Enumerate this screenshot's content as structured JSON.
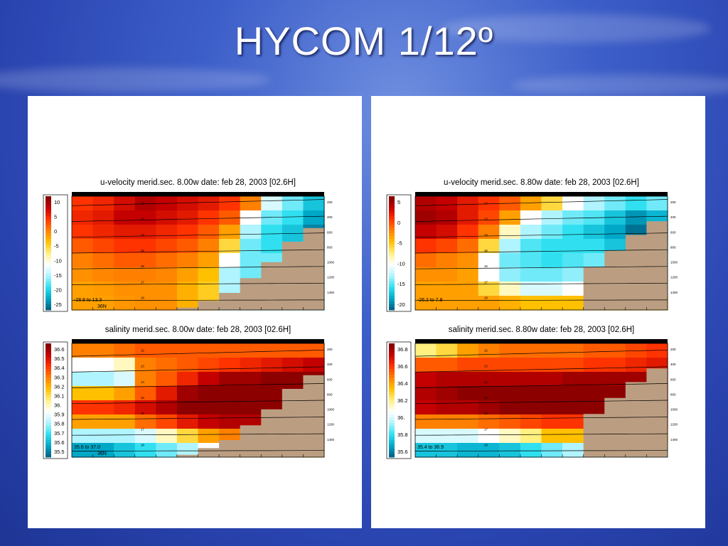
{
  "slide": {
    "title": "HYCOM 1/12º"
  },
  "chart_data": [
    {
      "type": "heatmap",
      "panel": "left",
      "variable": "u-velocity",
      "title": "u-velocity merid.sec.  8.00w   date: feb 28, 2003   [02.6H]",
      "colorbar_ticks": [
        "10",
        "5",
        "0",
        "-5",
        "-10",
        "-15",
        "-20",
        "-25"
      ],
      "colorbar_stops": [
        "#7a0000",
        "#c40000",
        "#ff3300",
        "#ff8000",
        "#ffc000",
        "#fff080",
        "#ffffff",
        "#b0f4ff",
        "#30e0f0",
        "#00a8c8",
        "#005e80"
      ],
      "depth_ticks": [
        "200",
        "400",
        "600",
        "800",
        "1000",
        "1200",
        "1400"
      ],
      "layer_labels": [
        "12",
        "13",
        "14",
        "15",
        "16",
        "17",
        "18"
      ],
      "range_text": "-28.8 to  13.3",
      "lat_text": "36N",
      "columns": [
        [
          0.6,
          0.65,
          0.6,
          0.5,
          0.4,
          0.35,
          0.3,
          0.3
        ],
        [
          0.65,
          0.7,
          0.65,
          0.55,
          0.45,
          0.38,
          0.32,
          0.3
        ],
        [
          0.75,
          0.8,
          0.7,
          0.6,
          0.5,
          0.4,
          0.35,
          0.33
        ],
        [
          0.85,
          0.8,
          0.7,
          0.6,
          0.5,
          0.4,
          0.35,
          0.35
        ],
        [
          0.8,
          0.75,
          0.65,
          0.55,
          0.45,
          0.38,
          0.35,
          0.35
        ],
        [
          0.75,
          0.7,
          0.6,
          0.5,
          0.4,
          0.3,
          0.25,
          0.25
        ],
        [
          0.7,
          0.6,
          0.5,
          0.4,
          0.3,
          0.2,
          0.15,
          0.15
        ],
        [
          0.6,
          0.5,
          0.3,
          0.1,
          -0.2,
          -0.4,
          -0.4,
          -0.4
        ],
        [
          0.4,
          -0.2,
          -0.4,
          -0.5,
          -0.5,
          -0.5,
          -0.5,
          -0.5
        ],
        [
          -0.3,
          -0.5,
          -0.6,
          -0.6,
          -0.5,
          -0.5,
          -0.5,
          -0.5
        ],
        [
          -0.5,
          -0.6,
          -0.7,
          -0.7,
          -0.5,
          -0.5,
          -0.5,
          -0.5
        ],
        [
          -0.7,
          -0.8,
          -0.9,
          -0.8,
          -0.6,
          -0.5,
          -0.5,
          -0.5
        ]
      ],
      "seafloor": [
        1.0,
        1.0,
        1.0,
        1.0,
        1.0,
        0.98,
        0.92,
        0.85,
        0.72,
        0.58,
        0.4,
        0.28
      ]
    },
    {
      "type": "heatmap",
      "panel": "left",
      "variable": "salinity",
      "title": "salinity merid.sec.  8.00w   date: feb 28, 2003   [02.6H]",
      "colorbar_ticks": [
        "36.6",
        "36.5",
        "36.4",
        "36.3",
        "36.2",
        "36.1",
        "36.",
        "35.9",
        "35.8",
        "35.7",
        "35.6",
        "35.5"
      ],
      "colorbar_stops": [
        "#7a0000",
        "#c40000",
        "#ff3300",
        "#ff8000",
        "#ffc000",
        "#fff080",
        "#ffffff",
        "#b0f4ff",
        "#30e0f0",
        "#00a8c8",
        "#005e80"
      ],
      "depth_ticks": [
        "200",
        "400",
        "600",
        "800",
        "1000",
        "1200",
        "1400"
      ],
      "layer_labels": [
        "12",
        "13",
        "14",
        "15",
        "16",
        "17",
        "18"
      ],
      "range_text": "35.6 to  37.0",
      "lat_text": "36N",
      "columns": [
        [
          0.4,
          -0.2,
          -0.4,
          0.2,
          0.6,
          0.3,
          -0.4,
          -0.8
        ],
        [
          0.4,
          -0.2,
          -0.4,
          0.2,
          0.6,
          0.3,
          -0.4,
          -0.8
        ],
        [
          0.45,
          -0.1,
          -0.3,
          0.3,
          0.65,
          0.3,
          -0.4,
          -0.7
        ],
        [
          0.5,
          0.4,
          0.4,
          0.5,
          0.75,
          0.45,
          -0.3,
          -0.6
        ],
        [
          0.5,
          0.45,
          0.5,
          0.7,
          0.85,
          0.55,
          -0.1,
          -0.5
        ],
        [
          0.5,
          0.5,
          0.65,
          0.9,
          0.95,
          0.7,
          0.1,
          -0.4
        ],
        [
          0.5,
          0.55,
          0.8,
          0.95,
          0.95,
          0.8,
          0.3,
          -0.2
        ],
        [
          0.5,
          0.6,
          0.9,
          0.95,
          0.95,
          0.85,
          0.4,
          0.0
        ],
        [
          0.5,
          0.65,
          0.9,
          0.95,
          0.95,
          0.85,
          0.4,
          0.1
        ],
        [
          0.5,
          0.7,
          0.95,
          0.95,
          0.95,
          0.85,
          0.4,
          0.1
        ],
        [
          0.5,
          0.75,
          0.95,
          0.95,
          0.95,
          0.85,
          0.4,
          0.1
        ],
        [
          0.5,
          0.8,
          0.95,
          0.95,
          0.95,
          0.85,
          0.4,
          0.1
        ]
      ],
      "seafloor": [
        1.0,
        1.0,
        1.0,
        1.0,
        1.0,
        0.98,
        0.92,
        0.85,
        0.72,
        0.58,
        0.4,
        0.28
      ]
    },
    {
      "type": "heatmap",
      "panel": "right",
      "variable": "u-velocity",
      "title": "u-velocity merid.sec.  8.80w   date: feb 28, 2003   [02.6H]",
      "colorbar_ticks": [
        "5",
        "0",
        "-5",
        "-10",
        "-15",
        "-20"
      ],
      "colorbar_stops": [
        "#7a0000",
        "#c40000",
        "#ff3300",
        "#ff8000",
        "#ffc000",
        "#fff080",
        "#ffffff",
        "#b0f4ff",
        "#30e0f0",
        "#00a8c8",
        "#005e80"
      ],
      "depth_ticks": [
        "200",
        "400",
        "600",
        "800",
        "1000",
        "1200",
        "1400"
      ],
      "layer_labels": [
        "12",
        "13",
        "14",
        "15",
        "16",
        "17",
        "18"
      ],
      "range_text": "-26.2 to   7.8",
      "lat_text": "",
      "columns": [
        [
          0.85,
          0.9,
          0.8,
          0.6,
          0.45,
          0.35,
          0.3,
          0.3
        ],
        [
          0.8,
          0.85,
          0.75,
          0.55,
          0.4,
          0.35,
          0.3,
          0.3
        ],
        [
          0.7,
          0.7,
          0.6,
          0.45,
          0.35,
          0.3,
          0.3,
          0.3
        ],
        [
          0.6,
          0.55,
          0.4,
          0.1,
          -0.2,
          -0.2,
          0.1,
          0.3
        ],
        [
          0.5,
          0.3,
          -0.1,
          -0.4,
          -0.5,
          -0.45,
          -0.1,
          0.25
        ],
        [
          0.3,
          -0.2,
          -0.4,
          -0.55,
          -0.55,
          -0.5,
          -0.3,
          0.2
        ],
        [
          0.1,
          -0.4,
          -0.5,
          -0.6,
          -0.6,
          -0.5,
          -0.3,
          0.2
        ],
        [
          -0.2,
          -0.5,
          -0.6,
          -0.6,
          -0.55,
          -0.45,
          -0.2,
          0.2
        ],
        [
          -0.4,
          -0.55,
          -0.7,
          -0.6,
          -0.5,
          -0.4,
          -0.2,
          0.2
        ],
        [
          -0.5,
          -0.7,
          -0.8,
          -0.7,
          -0.5,
          -0.4,
          -0.2,
          0.2
        ],
        [
          -0.6,
          -0.85,
          -0.95,
          -0.8,
          -0.55,
          -0.4,
          -0.2,
          0.2
        ],
        [
          -0.5,
          -0.75,
          -0.85,
          -0.7,
          -0.5,
          -0.4,
          -0.2,
          0.2
        ]
      ],
      "seafloor": [
        1.0,
        1.0,
        1.0,
        1.0,
        1.0,
        1.0,
        1.0,
        1.0,
        0.62,
        0.48,
        0.34,
        0.22
      ]
    },
    {
      "type": "heatmap",
      "panel": "right",
      "variable": "salinity",
      "title": "salinity merid.sec.  8.80w   date: feb 28, 2003   [02.6H]",
      "colorbar_ticks": [
        "36.8",
        "36.6",
        "36.4",
        "36.2",
        "36.",
        "35.8",
        "35.6"
      ],
      "colorbar_stops": [
        "#7a0000",
        "#c40000",
        "#ff3300",
        "#ff8000",
        "#ffc000",
        "#fff080",
        "#ffffff",
        "#b0f4ff",
        "#30e0f0",
        "#00a8c8",
        "#005e80"
      ],
      "depth_ticks": [
        "200",
        "400",
        "600",
        "800",
        "1000",
        "1200",
        "1400"
      ],
      "layer_labels": [
        "12",
        "13",
        "14",
        "15",
        "16",
        "17",
        "18"
      ],
      "range_text": "35.4 to  36.9",
      "lat_text": "",
      "columns": [
        [
          0.0,
          0.5,
          0.8,
          0.85,
          0.8,
          0.4,
          -0.3,
          -0.7
        ],
        [
          0.1,
          0.5,
          0.85,
          0.9,
          0.85,
          0.4,
          -0.3,
          -0.7
        ],
        [
          0.3,
          0.55,
          0.85,
          0.95,
          0.85,
          0.4,
          -0.3,
          -0.75
        ],
        [
          0.4,
          0.55,
          0.85,
          0.95,
          0.9,
          0.45,
          -0.2,
          -0.75
        ],
        [
          0.45,
          0.55,
          0.85,
          0.95,
          0.95,
          0.5,
          -0.1,
          -0.7
        ],
        [
          0.45,
          0.55,
          0.85,
          0.95,
          0.95,
          0.55,
          0.0,
          -0.6
        ],
        [
          0.45,
          0.55,
          0.85,
          0.95,
          0.95,
          0.6,
          0.2,
          -0.5
        ],
        [
          0.45,
          0.55,
          0.9,
          0.95,
          0.95,
          0.6,
          0.2,
          -0.4
        ],
        [
          0.5,
          0.6,
          0.9,
          0.95,
          0.95,
          0.6,
          0.2,
          -0.3
        ],
        [
          0.5,
          0.6,
          0.9,
          0.95,
          0.95,
          0.6,
          0.2,
          -0.3
        ],
        [
          0.55,
          0.65,
          0.9,
          0.95,
          0.95,
          0.6,
          0.2,
          -0.3
        ],
        [
          0.6,
          0.7,
          0.9,
          0.95,
          0.95,
          0.6,
          0.2,
          -0.3
        ]
      ],
      "seafloor": [
        1.0,
        1.0,
        1.0,
        1.0,
        1.0,
        1.0,
        1.0,
        1.0,
        0.62,
        0.48,
        0.34,
        0.22
      ]
    }
  ]
}
